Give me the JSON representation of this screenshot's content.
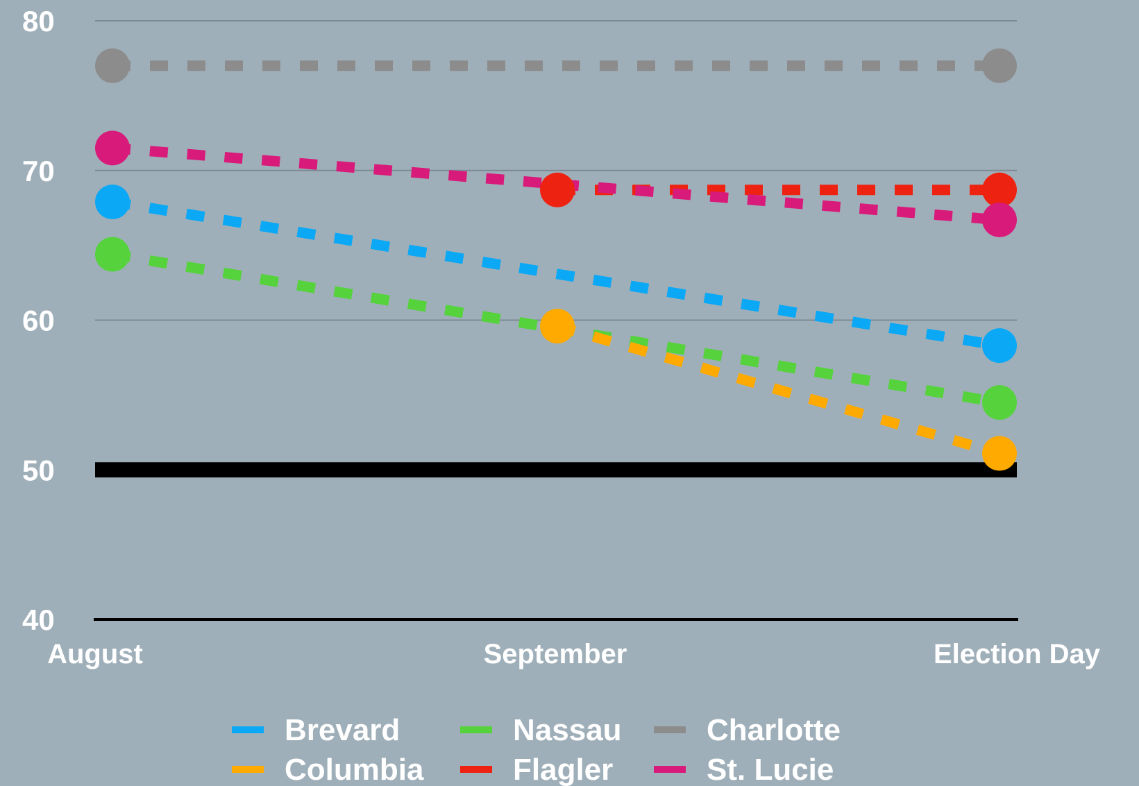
{
  "chart_data": {
    "type": "line",
    "categories": [
      "August",
      "September",
      "Election Day"
    ],
    "y_ticks": [
      "80",
      "70",
      "60",
      "50",
      "40"
    ],
    "ylim": [
      40,
      80
    ],
    "y_tick_values": [
      80,
      70,
      60,
      50,
      40
    ],
    "reference_line": 50,
    "grid": true,
    "legend_position": "bottom",
    "series": [
      {
        "name": "Brevard",
        "color": "#0aa8f5",
        "values": [
          67.9,
          null,
          58.3
        ]
      },
      {
        "name": "Nassau",
        "color": "#55d23c",
        "values": [
          64.4,
          null,
          54.5
        ]
      },
      {
        "name": "Charlotte",
        "color": "#8c8c8c",
        "values": [
          77.0,
          null,
          77.0
        ]
      },
      {
        "name": "Columbia",
        "color": "#ffaa00",
        "values": [
          null,
          59.6,
          51.1
        ]
      },
      {
        "name": "Flagler",
        "color": "#ee2211",
        "values": [
          null,
          68.7,
          68.7
        ]
      },
      {
        "name": "St. Lucie",
        "color": "#d81b7a",
        "values": [
          71.5,
          null,
          66.7
        ]
      }
    ]
  }
}
